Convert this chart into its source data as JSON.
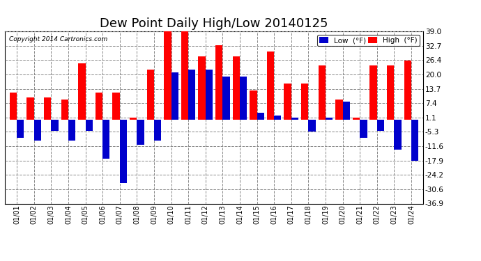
{
  "title": "Dew Point Daily High/Low 20140125",
  "copyright": "Copyright 2014 Cartronics.com",
  "ylabel_right_ticks": [
    -36.9,
    -30.6,
    -24.2,
    -17.9,
    -11.6,
    -5.3,
    1.1,
    7.4,
    13.7,
    20.0,
    26.4,
    32.7,
    39.0
  ],
  "dates": [
    "01/01",
    "01/02",
    "01/03",
    "01/04",
    "01/05",
    "01/06",
    "01/07",
    "01/08",
    "01/09",
    "01/10",
    "01/11",
    "01/12",
    "01/13",
    "01/14",
    "01/15",
    "01/16",
    "01/17",
    "01/18",
    "01/19",
    "01/20",
    "01/21",
    "01/22",
    "01/23",
    "01/24"
  ],
  "high": [
    12.0,
    10.0,
    10.0,
    9.0,
    25.0,
    12.0,
    12.0,
    1.1,
    22.0,
    39.0,
    39.0,
    28.0,
    33.0,
    28.0,
    13.0,
    30.0,
    16.0,
    16.0,
    24.0,
    9.0,
    1.1,
    24.0,
    24.0,
    26.0
  ],
  "low": [
    -8.0,
    -9.0,
    -5.0,
    -9.0,
    -5.0,
    -17.0,
    -28.0,
    -11.0,
    -9.0,
    21.0,
    22.0,
    22.0,
    19.0,
    19.0,
    3.0,
    2.0,
    1.1,
    -5.3,
    1.1,
    8.0,
    -8.0,
    -5.0,
    -13.0,
    -18.0
  ],
  "high_color": "#ff0000",
  "low_color": "#0000cc",
  "bg_color": "#ffffff",
  "grid_color": "#888888",
  "title_fontsize": 13,
  "legend_low_label": "Low  (°F)",
  "legend_high_label": "High  (°F)"
}
